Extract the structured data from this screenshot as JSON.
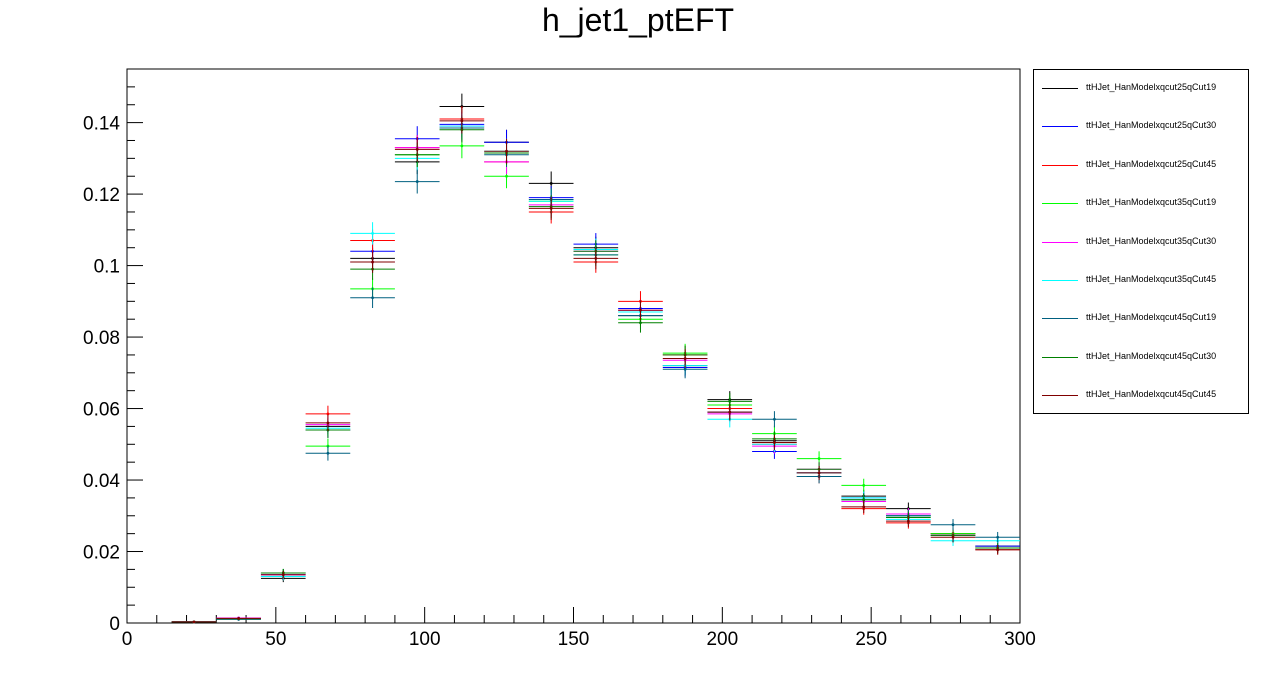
{
  "chart_data": {
    "type": "scatter",
    "title": "h_jet1_ptEFT",
    "xlabel": "",
    "ylabel": "",
    "xlim": [
      0,
      300
    ],
    "ylim": [
      0,
      0.155
    ],
    "x_ticks": [
      0,
      50,
      100,
      150,
      200,
      250,
      300
    ],
    "y_ticks": [
      0,
      0.02,
      0.04,
      0.06,
      0.08,
      0.1,
      0.12,
      0.14
    ],
    "x_tick_labels": [
      "0",
      "50",
      "100",
      "150",
      "200",
      "250",
      "300"
    ],
    "y_tick_labels": [
      "0",
      "0.02",
      "0.04",
      "0.06",
      "0.08",
      "0.1",
      "0.12",
      "0.14"
    ],
    "bin_width": 15,
    "legend_position": "right",
    "x": [
      22.5,
      37.5,
      52.5,
      67.5,
      82.5,
      97.5,
      112.5,
      127.5,
      142.5,
      157.5,
      172.5,
      187.5,
      202.5,
      217.5,
      232.5,
      247.5,
      262.5,
      277.5,
      292.5
    ],
    "series": [
      {
        "name": "ttHJet_HanModelxqcut25qCut19",
        "color": "#000000",
        "values": [
          0.0003,
          0.0012,
          0.0125,
          0.055,
          0.102,
          0.129,
          0.1445,
          0.1345,
          0.123,
          0.105,
          0.086,
          0.072,
          0.0625,
          0.051,
          0.042,
          0.0355,
          0.032,
          0.025,
          0.0215
        ]
      },
      {
        "name": "ttHJet_HanModelxqcut25qCut30",
        "color": "#0000ff",
        "values": [
          0.0003,
          0.0014,
          0.0135,
          0.054,
          0.104,
          0.1355,
          0.1395,
          0.1345,
          0.119,
          0.106,
          0.088,
          0.0715,
          0.059,
          0.048,
          0.042,
          0.035,
          0.03,
          0.0245,
          0.0215
        ]
      },
      {
        "name": "ttHJet_HanModelxqcut25qCut45",
        "color": "#ff0000",
        "values": [
          0.0003,
          0.0013,
          0.013,
          0.0585,
          0.107,
          0.133,
          0.141,
          0.129,
          0.115,
          0.101,
          0.09,
          0.075,
          0.06,
          0.05,
          0.041,
          0.032,
          0.028,
          0.025,
          0.0205
        ]
      },
      {
        "name": "ttHJet_HanModelxqcut35qCut19",
        "color": "#00ff00",
        "values": [
          0.0003,
          0.0012,
          0.014,
          0.0495,
          0.0935,
          0.131,
          0.1335,
          0.125,
          0.118,
          0.103,
          0.085,
          0.0755,
          0.061,
          0.053,
          0.046,
          0.0385,
          0.03,
          0.025,
          0.021
        ]
      },
      {
        "name": "ttHJet_HanModelxqcut35qCut30",
        "color": "#ff00ff",
        "values": [
          0.0003,
          0.0014,
          0.0135,
          0.0555,
          0.101,
          0.133,
          0.139,
          0.129,
          0.117,
          0.104,
          0.0875,
          0.0735,
          0.0585,
          0.0495,
          0.043,
          0.034,
          0.0305,
          0.0245,
          0.021
        ]
      },
      {
        "name": "ttHJet_HanModelxqcut35qCut45",
        "color": "#00ffff",
        "values": [
          0.0003,
          0.0012,
          0.013,
          0.0545,
          0.109,
          0.13,
          0.139,
          0.132,
          0.118,
          0.1045,
          0.087,
          0.072,
          0.057,
          0.05,
          0.042,
          0.035,
          0.029,
          0.023,
          0.023
        ]
      },
      {
        "name": "ttHJet_HanModelxqcut45qCut19",
        "color": "#006080",
        "values": [
          0.0003,
          0.001,
          0.014,
          0.0475,
          0.091,
          0.1235,
          0.1385,
          0.131,
          0.1185,
          0.103,
          0.086,
          0.071,
          0.059,
          0.057,
          0.041,
          0.0345,
          0.03,
          0.0275,
          0.024
        ]
      },
      {
        "name": "ttHJet_HanModelxqcut45qCut30",
        "color": "#008000",
        "values": [
          0.0003,
          0.0012,
          0.014,
          0.054,
          0.099,
          0.131,
          0.138,
          0.1315,
          0.1165,
          0.104,
          0.084,
          0.075,
          0.062,
          0.0515,
          0.043,
          0.0345,
          0.0295,
          0.0245,
          0.021
        ]
      },
      {
        "name": "ttHJet_HanModelxqcut45qCut45",
        "color": "#800000",
        "values": [
          0.0003,
          0.0013,
          0.0135,
          0.056,
          0.101,
          0.1325,
          0.1405,
          0.132,
          0.116,
          0.102,
          0.0875,
          0.074,
          0.059,
          0.0505,
          0.042,
          0.0325,
          0.0285,
          0.024,
          0.0205
        ]
      }
    ]
  }
}
